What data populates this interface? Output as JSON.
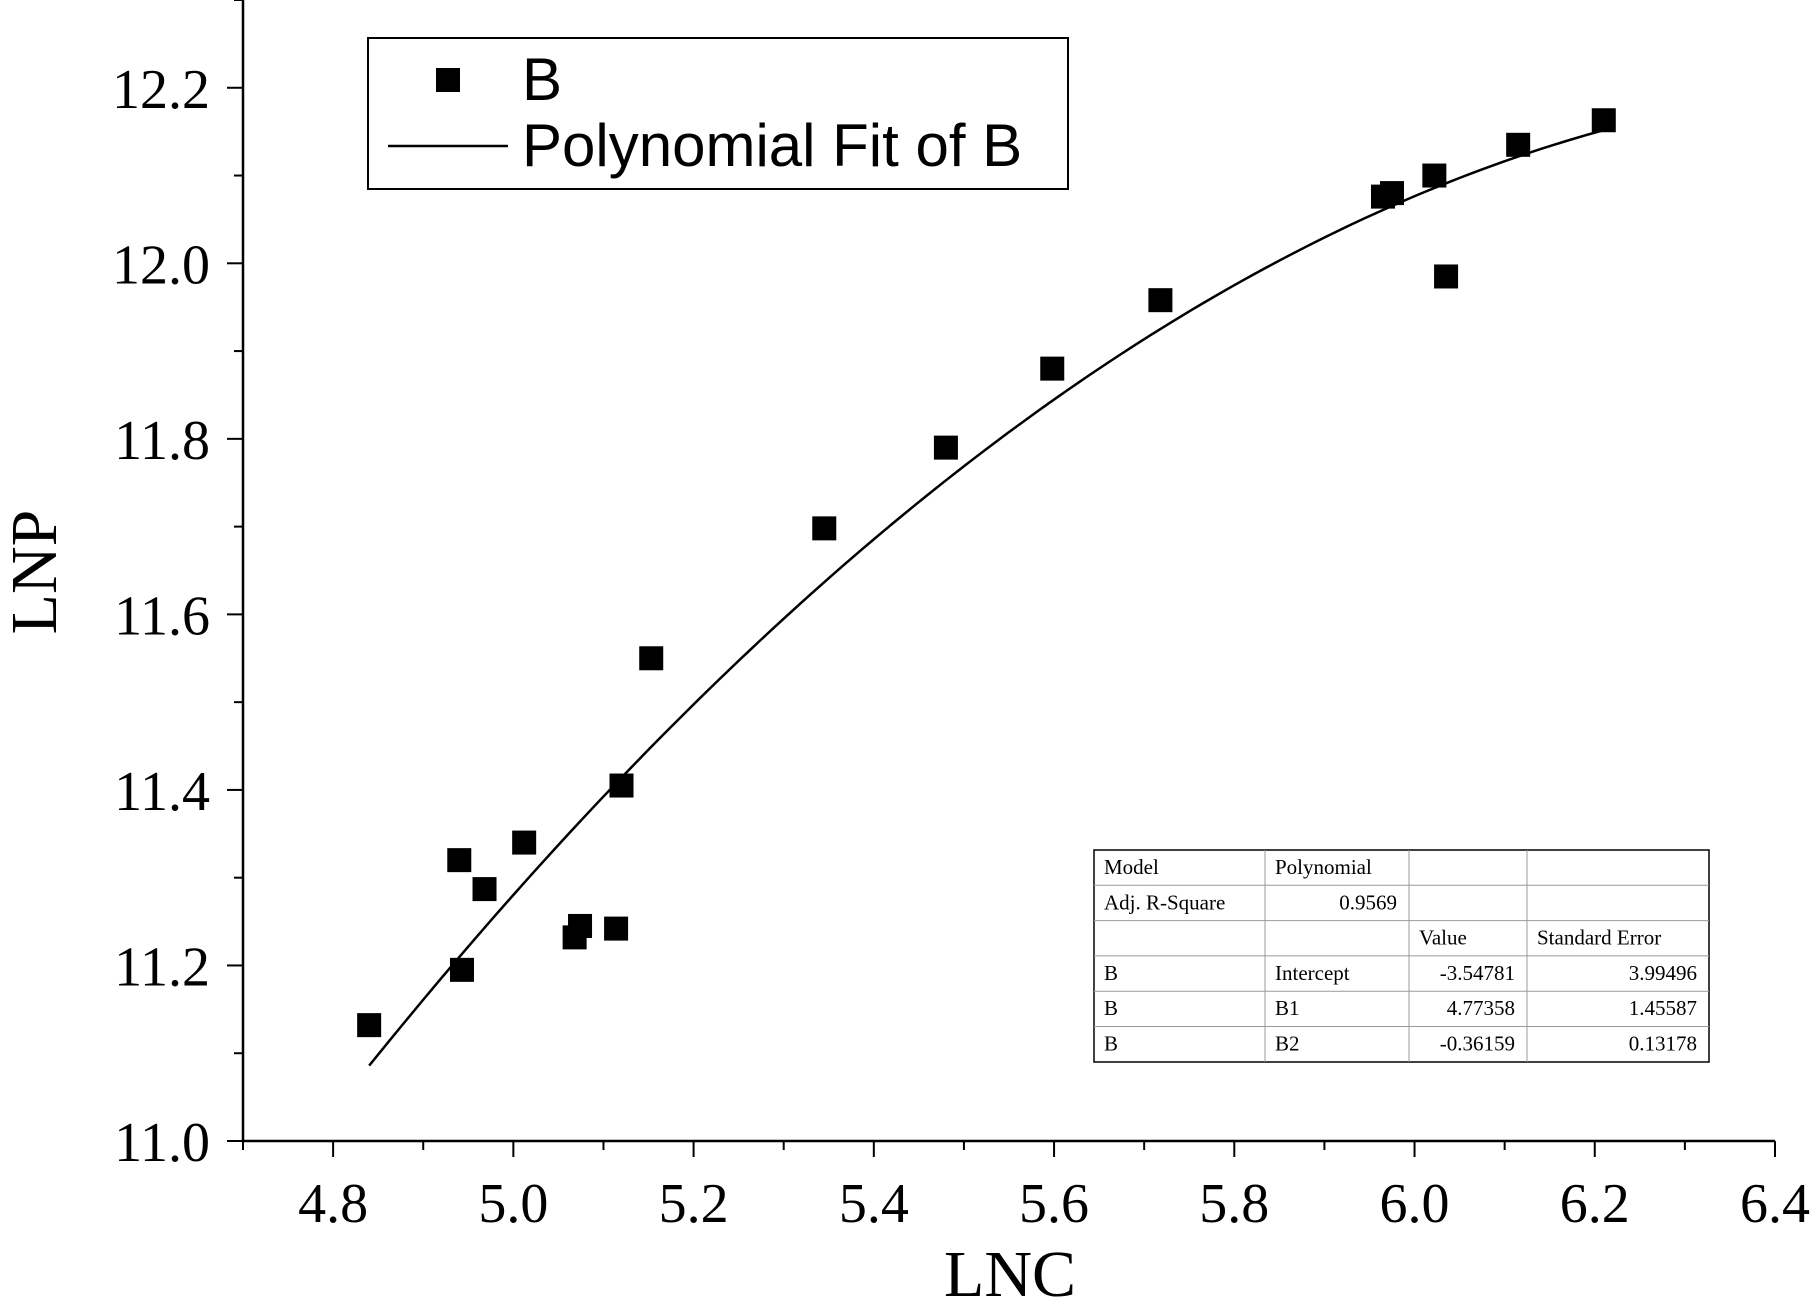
{
  "chart_data": {
    "type": "scatter",
    "xlabel": "LNC",
    "ylabel": "LNP",
    "xlim": [
      4.7,
      6.4
    ],
    "ylim": [
      11.0,
      12.3
    ],
    "x_ticks": [
      "4.8",
      "5.0",
      "5.2",
      "5.4",
      "5.6",
      "5.8",
      "6.0",
      "6.2",
      "6.4"
    ],
    "y_ticks": [
      "11.0",
      "11.2",
      "11.4",
      "11.6",
      "11.8",
      "12.0",
      "12.2"
    ],
    "grid": false,
    "legend_position": "top-left",
    "legend": {
      "points_label": "B",
      "fit_label": "Polynomial Fit of B"
    },
    "series": [
      {
        "name": "B",
        "type": "scatter",
        "x": [
          4.84,
          4.94,
          4.943,
          4.968,
          5.012,
          5.068,
          5.074,
          5.114,
          5.12,
          5.153,
          5.345,
          5.48,
          5.598,
          5.718,
          5.965,
          5.975,
          6.022,
          6.035,
          6.115,
          6.21
        ],
        "y": [
          11.132,
          11.32,
          11.195,
          11.287,
          11.34,
          11.232,
          11.245,
          11.242,
          11.405,
          11.55,
          11.698,
          11.79,
          11.88,
          11.958,
          12.076,
          12.08,
          12.1,
          11.985,
          12.135,
          12.163
        ]
      },
      {
        "name": "Polynomial Fit of B",
        "type": "line",
        "x_range": [
          4.84,
          6.21
        ],
        "coefficients": {
          "intercept": -3.54781,
          "b1": 4.77358,
          "b2": -0.36159
        }
      }
    ],
    "fit_table": {
      "rows": [
        [
          "Model",
          "Polynomial",
          "",
          ""
        ],
        [
          "Adj. R-Square",
          "0.9569",
          "",
          ""
        ],
        [
          "",
          "",
          "Value",
          "Standard Error"
        ],
        [
          "B",
          "Intercept",
          "-3.54781",
          "3.99496"
        ],
        [
          "B",
          "B1",
          "4.77358",
          "1.45587"
        ],
        [
          "B",
          "B2",
          "-0.36159",
          "0.13178"
        ]
      ]
    }
  }
}
